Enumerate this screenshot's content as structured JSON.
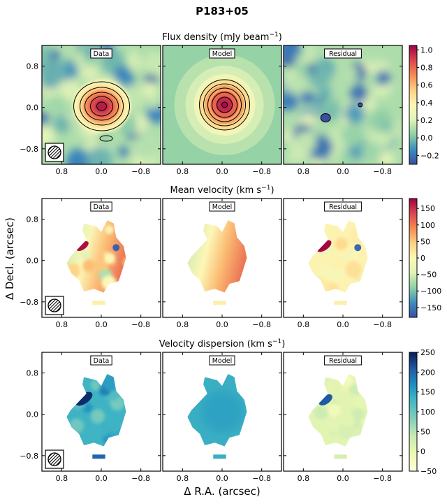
{
  "chart_data": {
    "type": "heatmap",
    "title": "P183+05",
    "xlabel": "Δ R.A. (arcsec)",
    "ylabel": "Δ Decl. (arcsec)",
    "xlim": [
      1.2,
      -1.2
    ],
    "ylim": [
      -1.1,
      1.2
    ],
    "x_ticks": [
      "0.8",
      "0.0",
      "−0.8"
    ],
    "x_tick_values": [
      0.8,
      0.0,
      -0.8
    ],
    "y_ticks": [
      "0.8",
      "0.0",
      "−0.8"
    ],
    "y_tick_values": [
      0.8,
      0.0,
      -0.8
    ],
    "panel_labels": [
      "Data",
      "Model",
      "Residual"
    ],
    "rows": [
      {
        "name": "flux",
        "title_main": "Flux density (mJy beam",
        "title_sup": "−1",
        "title_end": ")",
        "colormap": "Spectral_r",
        "vmin": -0.3,
        "vmax": 1.05,
        "colorbar_ticks": [
          "1.0",
          "0.8",
          "0.6",
          "0.4",
          "0.2",
          "0.0",
          "−0.2"
        ],
        "colorbar_values": [
          1.0,
          0.8,
          0.6,
          0.4,
          0.2,
          0.0,
          -0.2
        ]
      },
      {
        "name": "velocity",
        "title_main": "Mean velocity (km s",
        "title_sup": "−1",
        "title_end": ")",
        "colormap": "Spectral_r",
        "vmin": -180,
        "vmax": 180,
        "colorbar_ticks": [
          "150",
          "100",
          "50",
          "0",
          "−50",
          "−100",
          "−150"
        ],
        "colorbar_values": [
          150,
          100,
          50,
          0,
          -50,
          -100,
          -150
        ]
      },
      {
        "name": "dispersion",
        "title_main": "Velocity dispersion (km s",
        "title_sup": "−1",
        "title_end": ")",
        "colormap": "YlGnBu",
        "vmin": -50,
        "vmax": 250,
        "colorbar_ticks": [
          "250",
          "200",
          "150",
          "100",
          "50",
          "0",
          "−50"
        ],
        "colorbar_values": [
          250,
          200,
          150,
          100,
          50,
          0,
          -50
        ]
      }
    ]
  }
}
